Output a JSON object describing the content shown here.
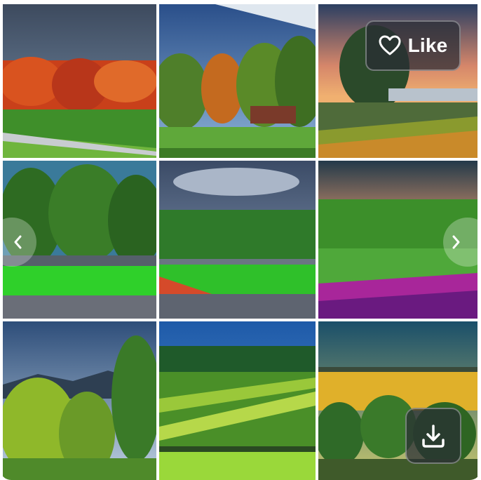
{
  "actions": {
    "like_label": "Like"
  },
  "icons": {
    "like": "heart-icon",
    "previous": "chevron-left-icon",
    "next": "chevron-right-icon",
    "download": "download-icon"
  },
  "colors": {
    "overlay_button": "#282c34",
    "icon": "#ffffff"
  },
  "gallery": {
    "tile_count": 9
  }
}
